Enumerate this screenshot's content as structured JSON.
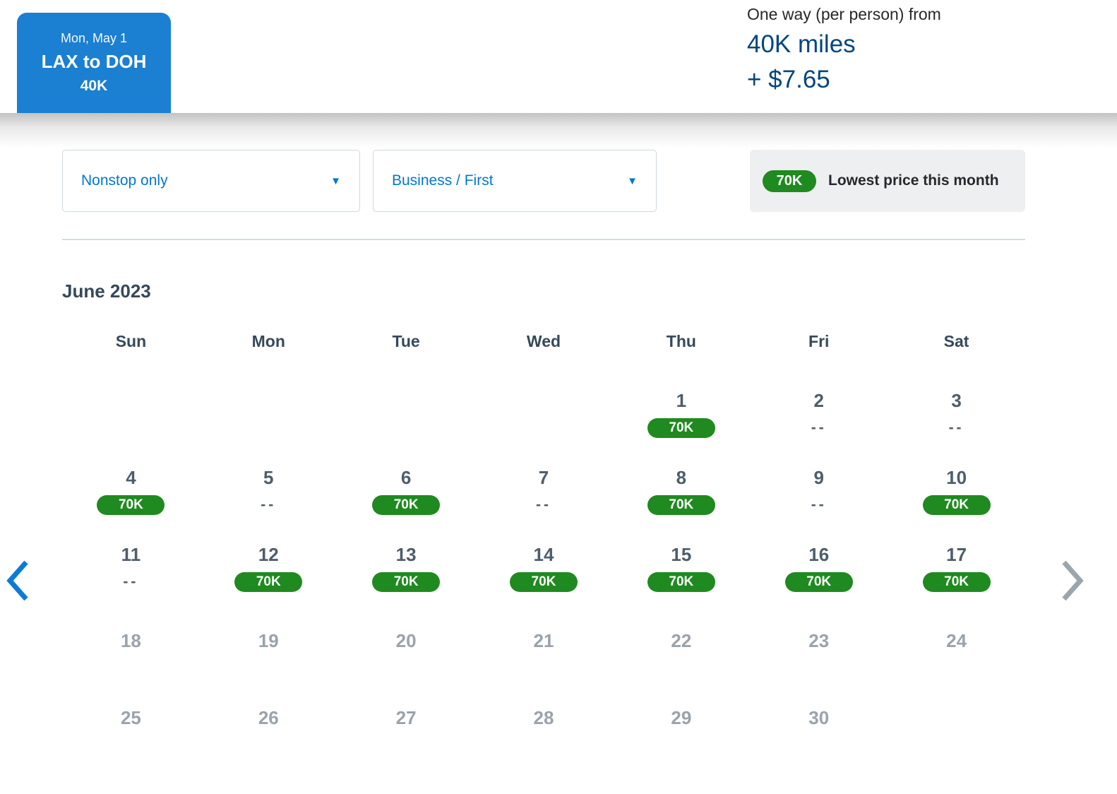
{
  "selected_flight_tab": {
    "date": "Mon, May 1",
    "route": "LAX to DOH",
    "miles": "40K"
  },
  "price_summary": {
    "prefix": "One way (per person) from",
    "miles": "40K miles",
    "taxes": "+ $7.65"
  },
  "filters": {
    "stops_dropdown": {
      "value": "Nonstop only"
    },
    "cabin_dropdown": {
      "value": "Business / First"
    }
  },
  "legend": {
    "badge": "70K",
    "label": "Lowest price this month"
  },
  "icons": {
    "dropdown_caret": "▼"
  },
  "calendar": {
    "month_title": "June 2023",
    "day_headers": [
      "Sun",
      "Mon",
      "Tue",
      "Wed",
      "Thu",
      "Fri",
      "Sat"
    ],
    "weeks": [
      [
        null,
        null,
        null,
        null,
        {
          "day": "1",
          "price": "70K"
        },
        {
          "day": "2",
          "price": "--"
        },
        {
          "day": "3",
          "price": "--"
        }
      ],
      [
        {
          "day": "4",
          "price": "70K"
        },
        {
          "day": "5",
          "price": "--"
        },
        {
          "day": "6",
          "price": "70K"
        },
        {
          "day": "7",
          "price": "--"
        },
        {
          "day": "8",
          "price": "70K"
        },
        {
          "day": "9",
          "price": "--"
        },
        {
          "day": "10",
          "price": "70K"
        }
      ],
      [
        {
          "day": "11",
          "price": "--"
        },
        {
          "day": "12",
          "price": "70K"
        },
        {
          "day": "13",
          "price": "70K"
        },
        {
          "day": "14",
          "price": "70K"
        },
        {
          "day": "15",
          "price": "70K"
        },
        {
          "day": "16",
          "price": "70K"
        },
        {
          "day": "17",
          "price": "70K"
        }
      ],
      [
        {
          "day": "18",
          "disabled": true
        },
        {
          "day": "19",
          "disabled": true
        },
        {
          "day": "20",
          "disabled": true
        },
        {
          "day": "21",
          "disabled": true
        },
        {
          "day": "22",
          "disabled": true
        },
        {
          "day": "23",
          "disabled": true
        },
        {
          "day": "24",
          "disabled": true
        }
      ],
      [
        {
          "day": "25",
          "disabled": true
        },
        {
          "day": "26",
          "disabled": true
        },
        {
          "day": "27",
          "disabled": true
        },
        {
          "day": "28",
          "disabled": true
        },
        {
          "day": "29",
          "disabled": true
        },
        {
          "day": "30",
          "disabled": true
        },
        null
      ]
    ],
    "nav": {
      "prev_enabled": true,
      "next_enabled": false
    }
  },
  "colors": {
    "tab_blue": "#1b7fd2",
    "link_blue": "#0078d2",
    "navy": "#00467f",
    "availability_green": "#1f8a1f",
    "slate": "#36495a",
    "disabled_gray": "#9aa3ab",
    "nav_disabled": "#9aa6ad"
  }
}
